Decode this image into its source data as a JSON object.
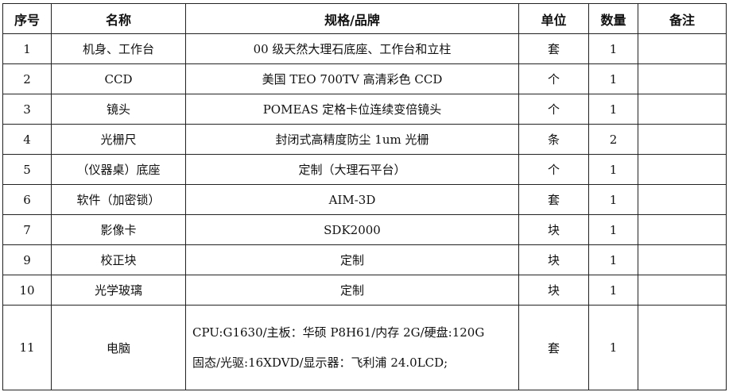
{
  "headers": [
    "序号",
    "名称",
    "规格/品牌",
    "单位",
    "数量",
    "备注"
  ],
  "rows": [
    {
      "no": "1",
      "name": "机身、工作台",
      "spec": "00 级天然大理石底座、工作台和立柱",
      "unit": "套",
      "qty": "1",
      "note": ""
    },
    {
      "no": "2",
      "name": "CCD",
      "spec": "美国 TEO 700TV 高清彩色 CCD",
      "unit": "个",
      "qty": "1",
      "note": ""
    },
    {
      "no": "3",
      "name": "镜头",
      "spec": "POMEAS 定格卡位连续变倍镜头",
      "unit": "个",
      "qty": "1",
      "note": ""
    },
    {
      "no": "4",
      "name": "光栅尺",
      "spec": "封闭式高精度防尘 1um 光栅",
      "unit": "条",
      "qty": "2",
      "note": ""
    },
    {
      "no": "5",
      "name": "（仪器桌）底座",
      "spec": "定制（大理石平台）",
      "unit": "个",
      "qty": "1",
      "note": ""
    },
    {
      "no": "6",
      "name": "软件（加密锁）",
      "spec": "AIM-3D",
      "unit": "套",
      "qty": "1",
      "note": ""
    },
    {
      "no": "7",
      "name": "影像卡",
      "spec": "SDK2000",
      "unit": "块",
      "qty": "1",
      "note": ""
    },
    {
      "no": "9",
      "name": "校正块",
      "spec": "定制",
      "unit": "块",
      "qty": "1",
      "note": ""
    },
    {
      "no": "10",
      "name": "光学玻璃",
      "spec": "定制",
      "unit": "块",
      "qty": "1",
      "note": ""
    }
  ],
  "last_row": {
    "no": "11",
    "name": "电脑",
    "spec_line1": "CPU:G1630/主板：华硕 P8H61/内存 2G/硬盘:120G",
    "spec_line2": "固态/光驱:16XDVD/显示器：飞利浦 24.0LCD;",
    "unit": "套",
    "qty": "1",
    "note": ""
  }
}
